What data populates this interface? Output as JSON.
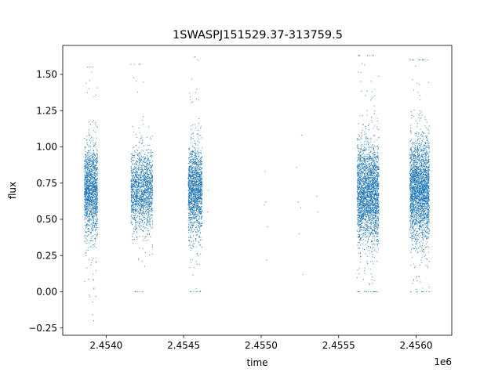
{
  "chart_data": {
    "type": "scatter",
    "title": "1SWASPJ151529.37-313759.5",
    "xlabel": "time",
    "ylabel": "flux",
    "x_offset_label": "1e6",
    "x_unit_scale": 1000000,
    "xlim": [
      2453720,
      2456230
    ],
    "ylim": [
      -0.3,
      1.7
    ],
    "x_ticks": [
      2454000,
      2454500,
      2455000,
      2455500,
      2456000
    ],
    "x_tick_labels": [
      "2.4540",
      "2.4545",
      "2.4550",
      "2.4555",
      "2.4560"
    ],
    "y_ticks": [
      -0.25,
      0.0,
      0.25,
      0.5,
      0.75,
      1.0,
      1.25,
      1.5
    ],
    "y_tick_labels": [
      "−0.25",
      "0.00",
      "0.25",
      "0.50",
      "0.75",
      "1.00",
      "1.25",
      "1.50"
    ],
    "grid": false,
    "marker_color": "#1f77b4",
    "observing_seasons": [
      {
        "x_start": 2453860,
        "x_end": 2453945,
        "y_center": 0.7,
        "y_spread": 0.15,
        "y_min": -0.2,
        "y_max": 1.55,
        "density": "high"
      },
      {
        "x_start": 2454160,
        "x_end": 2454300,
        "y_center": 0.7,
        "y_spread": 0.13,
        "y_min": 0.0,
        "y_max": 1.57,
        "density": "high"
      },
      {
        "x_start": 2454530,
        "x_end": 2454620,
        "y_center": 0.7,
        "y_spread": 0.14,
        "y_min": 0.0,
        "y_max": 1.62,
        "density": "high"
      },
      {
        "x_start": 2455620,
        "x_end": 2455760,
        "y_center": 0.68,
        "y_spread": 0.17,
        "y_min": 0.0,
        "y_max": 1.63,
        "density": "very high"
      },
      {
        "x_start": 2455960,
        "x_end": 2456085,
        "y_center": 0.7,
        "y_spread": 0.17,
        "y_min": 0.0,
        "y_max": 1.6,
        "density": "very high"
      }
    ],
    "sparse_points": [
      {
        "x": 2454660,
        "y": 0.7
      },
      {
        "x": 2454655,
        "y": 0.55
      },
      {
        "x": 2455025,
        "y": 0.83
      },
      {
        "x": 2455030,
        "y": 0.62
      },
      {
        "x": 2455035,
        "y": 0.22
      },
      {
        "x": 2455020,
        "y": 0.6
      },
      {
        "x": 2455040,
        "y": 0.45
      },
      {
        "x": 2455230,
        "y": 0.86
      },
      {
        "x": 2455240,
        "y": 0.62
      },
      {
        "x": 2455255,
        "y": 0.58
      },
      {
        "x": 2455260,
        "y": 1.08
      },
      {
        "x": 2455270,
        "y": 0.12
      },
      {
        "x": 2455245,
        "y": 0.4
      },
      {
        "x": 2455360,
        "y": 0.66
      },
      {
        "x": 2455365,
        "y": 0.55
      }
    ]
  }
}
